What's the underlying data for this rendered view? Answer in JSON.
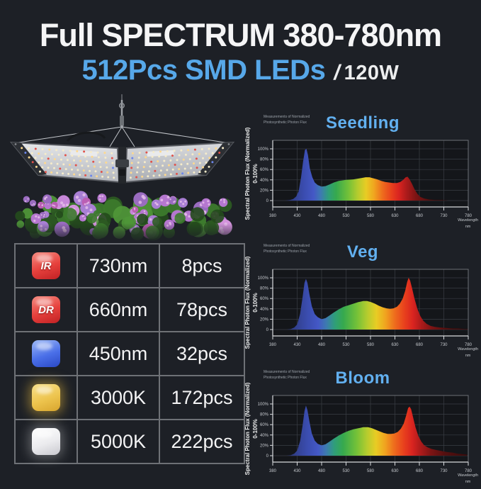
{
  "header": {
    "title": "Full SPECTRUM 380-780nm",
    "leds": "512Pcs SMD LEDs",
    "slash": "/",
    "power": "120W"
  },
  "colors": {
    "background": "#1d2026",
    "accent_blue": "#57a8e9",
    "chart_title_blue": "#62b0f0"
  },
  "led_table": {
    "rows": [
      {
        "chip_label": "IR",
        "chip_colors": [
          "#f58b80",
          "#e6403c",
          "#c02124"
        ],
        "glow": "",
        "wavelength": "730nm",
        "count": "8pcs"
      },
      {
        "chip_label": "DR",
        "chip_colors": [
          "#f58b80",
          "#e6403c",
          "#c02124"
        ],
        "glow": "",
        "wavelength": "660nm",
        "count": "78pcs"
      },
      {
        "chip_label": "",
        "chip_colors": [
          "#9db9f7",
          "#4a6fe8",
          "#2a48c4"
        ],
        "glow": "",
        "wavelength": "450nm",
        "count": "32pcs"
      },
      {
        "chip_label": "",
        "chip_colors": [
          "#f8e08a",
          "#edc44e",
          "#d8a52e"
        ],
        "glow": "rgba(222,178,60,0.55)",
        "wavelength": "3000K",
        "count": "172pcs"
      },
      {
        "chip_label": "",
        "chip_colors": [
          "#ffffff",
          "#ebebee",
          "#c9c9cf"
        ],
        "glow": "rgba(255,255,255,0.3)",
        "wavelength": "5000K",
        "count": "222pcs"
      }
    ]
  },
  "charts_common": {
    "note_line1": "Measurements of Normalized",
    "note_line2": "Photosynthetic Photon Flux",
    "y_axis_label": "Spectral Photon Flux (Normalized)",
    "y_axis_sublabel": "0-100%",
    "x_axis_label_line1": "Wavelength",
    "x_axis_label_line2": "nm",
    "y_ticks": [
      "100%",
      "80%",
      "60%",
      "40%",
      "20%",
      "0"
    ],
    "x_ticks": [
      380,
      430,
      480,
      530,
      580,
      630,
      680,
      730,
      780
    ]
  },
  "chart_data": [
    {
      "type": "area",
      "title": "Seedling",
      "xlabel": "Wavelength nm",
      "ylabel": "Spectral Photon Flux (Normalized) 0-100%",
      "xlim": [
        380,
        780
      ],
      "ylim": [
        0,
        100
      ],
      "x_ticks": [
        380,
        430,
        480,
        530,
        580,
        630,
        680,
        730,
        780
      ],
      "points": [
        [
          405,
          0
        ],
        [
          415,
          1
        ],
        [
          422,
          3
        ],
        [
          428,
          8
        ],
        [
          433,
          18
        ],
        [
          438,
          45
        ],
        [
          442,
          75
        ],
        [
          446,
          98
        ],
        [
          449,
          100
        ],
        [
          452,
          88
        ],
        [
          456,
          62
        ],
        [
          461,
          45
        ],
        [
          466,
          35
        ],
        [
          472,
          30
        ],
        [
          480,
          27
        ],
        [
          488,
          28
        ],
        [
          496,
          31
        ],
        [
          505,
          35
        ],
        [
          515,
          38
        ],
        [
          530,
          40
        ],
        [
          545,
          41
        ],
        [
          558,
          43
        ],
        [
          570,
          45
        ],
        [
          578,
          45
        ],
        [
          586,
          43
        ],
        [
          594,
          41
        ],
        [
          602,
          38
        ],
        [
          610,
          36
        ],
        [
          618,
          35
        ],
        [
          626,
          34
        ],
        [
          634,
          34
        ],
        [
          641,
          36
        ],
        [
          647,
          40
        ],
        [
          652,
          45
        ],
        [
          656,
          46
        ],
        [
          660,
          41
        ],
        [
          665,
          32
        ],
        [
          670,
          22
        ],
        [
          676,
          13
        ],
        [
          682,
          7
        ],
        [
          690,
          4
        ],
        [
          700,
          2
        ],
        [
          712,
          1
        ],
        [
          725,
          1
        ],
        [
          740,
          0
        ]
      ]
    },
    {
      "type": "area",
      "title": "Veg",
      "xlabel": "Wavelength nm",
      "ylabel": "Spectral Photon Flux (Normalized) 0-100%",
      "xlim": [
        380,
        780
      ],
      "ylim": [
        0,
        100
      ],
      "x_ticks": [
        380,
        430,
        480,
        530,
        580,
        630,
        680,
        730,
        780
      ],
      "points": [
        [
          408,
          0
        ],
        [
          417,
          1
        ],
        [
          424,
          4
        ],
        [
          430,
          10
        ],
        [
          436,
          30
        ],
        [
          441,
          62
        ],
        [
          445,
          90
        ],
        [
          448,
          98
        ],
        [
          451,
          90
        ],
        [
          455,
          68
        ],
        [
          460,
          45
        ],
        [
          466,
          30
        ],
        [
          472,
          24
        ],
        [
          480,
          20
        ],
        [
          488,
          22
        ],
        [
          496,
          27
        ],
        [
          505,
          33
        ],
        [
          515,
          39
        ],
        [
          525,
          44
        ],
        [
          535,
          47
        ],
        [
          545,
          50
        ],
        [
          555,
          53
        ],
        [
          565,
          55
        ],
        [
          573,
          55
        ],
        [
          581,
          53
        ],
        [
          589,
          50
        ],
        [
          597,
          46
        ],
        [
          605,
          43
        ],
        [
          613,
          41
        ],
        [
          620,
          40
        ],
        [
          627,
          41
        ],
        [
          634,
          44
        ],
        [
          640,
          50
        ],
        [
          646,
          60
        ],
        [
          651,
          75
        ],
        [
          655,
          92
        ],
        [
          658,
          100
        ],
        [
          661,
          95
        ],
        [
          665,
          80
        ],
        [
          670,
          60
        ],
        [
          676,
          40
        ],
        [
          682,
          26
        ],
        [
          688,
          17
        ],
        [
          695,
          11
        ],
        [
          703,
          7
        ],
        [
          712,
          5
        ],
        [
          722,
          4
        ],
        [
          735,
          3
        ],
        [
          748,
          2
        ],
        [
          760,
          2
        ],
        [
          772,
          1
        ],
        [
          780,
          1
        ]
      ]
    },
    {
      "type": "area",
      "title": "Bloom",
      "xlabel": "Wavelength nm",
      "ylabel": "Spectral Photon Flux (Normalized) 0-100%",
      "xlim": [
        380,
        780
      ],
      "ylim": [
        0,
        100
      ],
      "x_ticks": [
        380,
        430,
        480,
        530,
        580,
        630,
        680,
        730,
        780
      ],
      "points": [
        [
          408,
          0
        ],
        [
          417,
          1
        ],
        [
          424,
          4
        ],
        [
          430,
          10
        ],
        [
          436,
          28
        ],
        [
          441,
          58
        ],
        [
          445,
          86
        ],
        [
          448,
          97
        ],
        [
          451,
          88
        ],
        [
          455,
          66
        ],
        [
          460,
          43
        ],
        [
          466,
          29
        ],
        [
          472,
          23
        ],
        [
          480,
          20
        ],
        [
          488,
          22
        ],
        [
          496,
          27
        ],
        [
          505,
          33
        ],
        [
          515,
          39
        ],
        [
          525,
          44
        ],
        [
          535,
          48
        ],
        [
          545,
          51
        ],
        [
          555,
          53
        ],
        [
          565,
          55
        ],
        [
          575,
          55
        ],
        [
          583,
          53
        ],
        [
          591,
          50
        ],
        [
          599,
          47
        ],
        [
          607,
          44
        ],
        [
          615,
          42
        ],
        [
          622,
          42
        ],
        [
          629,
          43
        ],
        [
          636,
          46
        ],
        [
          642,
          52
        ],
        [
          648,
          62
        ],
        [
          653,
          78
        ],
        [
          657,
          92
        ],
        [
          660,
          95
        ],
        [
          663,
          90
        ],
        [
          667,
          75
        ],
        [
          672,
          55
        ],
        [
          678,
          38
        ],
        [
          684,
          27
        ],
        [
          690,
          20
        ],
        [
          697,
          16
        ],
        [
          705,
          13
        ],
        [
          715,
          11
        ],
        [
          725,
          9
        ],
        [
          737,
          7
        ],
        [
          748,
          6
        ],
        [
          758,
          4
        ],
        [
          768,
          3
        ],
        [
          778,
          2
        ]
      ]
    }
  ]
}
